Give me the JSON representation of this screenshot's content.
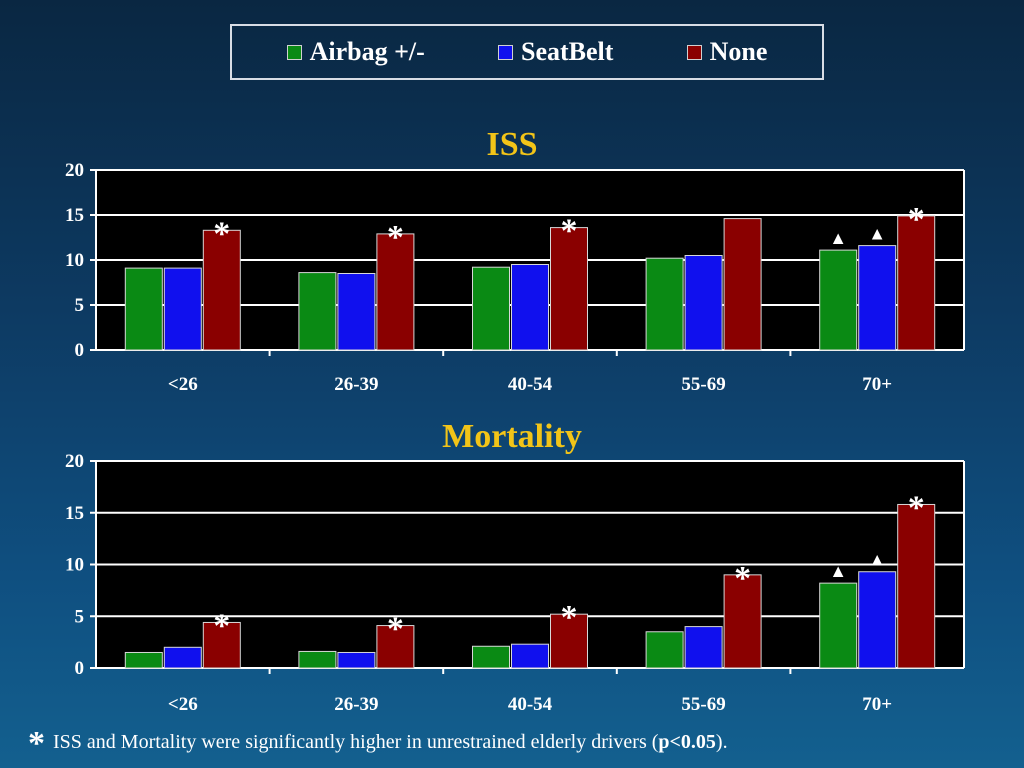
{
  "legend": [
    {
      "label": "Airbag +/-",
      "color": "#0a8a14"
    },
    {
      "label": "SeatBelt",
      "color": "#1010ee"
    },
    {
      "label": "None",
      "color": "#8a0000"
    }
  ],
  "chart_data": [
    {
      "type": "bar",
      "title": "ISS",
      "categories": [
        "<26",
        "26-39",
        "40-54",
        "55-69",
        "70+"
      ],
      "series": [
        {
          "name": "Airbag +/-",
          "values": [
            9.1,
            8.6,
            9.2,
            10.2,
            11.1
          ]
        },
        {
          "name": "SeatBelt",
          "values": [
            9.1,
            8.5,
            9.5,
            10.5,
            11.6
          ]
        },
        {
          "name": "None",
          "values": [
            13.3,
            12.9,
            13.6,
            14.6,
            14.9
          ]
        }
      ],
      "ylim": [
        0,
        20
      ],
      "yticks": [
        0,
        5,
        10,
        15,
        20
      ],
      "grid": true,
      "annotations": [
        {
          "category": "<26",
          "series": "None",
          "symbol": "*"
        },
        {
          "category": "26-39",
          "series": "None",
          "symbol": "*"
        },
        {
          "category": "40-54",
          "series": "None",
          "symbol": "*"
        },
        {
          "category": "70+",
          "series": "Airbag +/-",
          "symbol": "▲"
        },
        {
          "category": "70+",
          "series": "SeatBelt",
          "symbol": "▲"
        },
        {
          "category": "70+",
          "series": "None",
          "symbol": "*"
        }
      ]
    },
    {
      "type": "bar",
      "title": "Mortality",
      "categories": [
        "<26",
        "26-39",
        "40-54",
        "55-69",
        "70+"
      ],
      "series": [
        {
          "name": "Airbag +/-",
          "values": [
            1.5,
            1.6,
            2.1,
            3.5,
            8.2
          ]
        },
        {
          "name": "SeatBelt",
          "values": [
            2.0,
            1.5,
            2.3,
            4.0,
            9.3
          ]
        },
        {
          "name": "None",
          "values": [
            4.4,
            4.1,
            5.2,
            9.0,
            15.8
          ]
        }
      ],
      "ylim": [
        0,
        20
      ],
      "yticks": [
        0,
        5,
        10,
        15,
        20
      ],
      "grid": true,
      "annotations": [
        {
          "category": "<26",
          "series": "None",
          "symbol": "*"
        },
        {
          "category": "26-39",
          "series": "None",
          "symbol": "*"
        },
        {
          "category": "40-54",
          "series": "None",
          "symbol": "*"
        },
        {
          "category": "55-69",
          "series": "None",
          "symbol": "*"
        },
        {
          "category": "70+",
          "series": "Airbag +/-",
          "symbol": "▲"
        },
        {
          "category": "70+",
          "series": "SeatBelt",
          "symbol": "▲"
        },
        {
          "category": "70+",
          "series": "None",
          "symbol": "*"
        }
      ]
    }
  ],
  "footnote": {
    "star": "*",
    "text_before": "ISS and Mortality were significantly higher in unrestrained elderly drivers (",
    "bold": "p<0.05",
    "text_after": ")."
  }
}
